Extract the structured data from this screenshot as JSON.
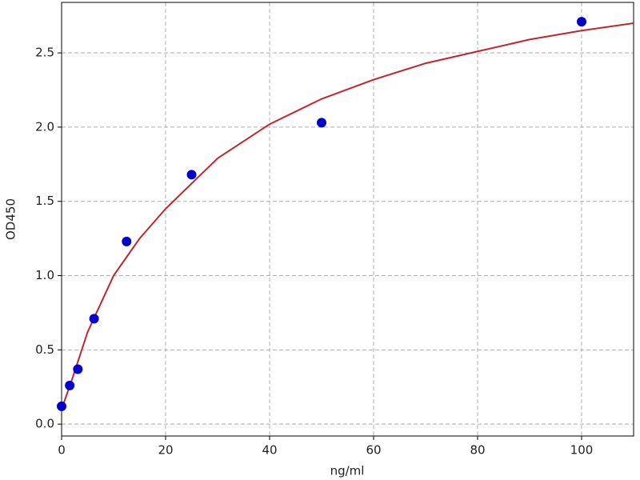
{
  "chart_data": {
    "type": "scatter",
    "x_label": "ng/ml",
    "y_label": "OD450",
    "xlim": [
      0,
      110
    ],
    "ylim": [
      -0.08,
      2.84
    ],
    "xticks": [
      0,
      20,
      40,
      60,
      80,
      100
    ],
    "yticks": [
      {
        "value": 0,
        "label": "0.0"
      },
      {
        "value": 0.5,
        "label": "0.5"
      },
      {
        "value": 1,
        "label": "1.0"
      },
      {
        "value": 1.5,
        "label": "1.5"
      },
      {
        "value": 2,
        "label": "2.0"
      },
      {
        "value": 2.5,
        "label": "2.5"
      }
    ],
    "grid": true,
    "series": [
      {
        "type": "scatter",
        "color": "#0000cc",
        "x": [
          0,
          1.5625,
          3.125,
          6.25,
          12.5,
          25,
          50,
          100
        ],
        "values": [
          0.12,
          0.26,
          0.37,
          0.71,
          1.23,
          1.68,
          2.03,
          2.71
        ]
      },
      {
        "type": "line",
        "color": "#c0272d",
        "x": [
          0,
          2,
          5,
          10,
          15,
          20,
          30,
          40,
          50,
          60,
          70,
          80,
          90,
          100,
          110
        ],
        "values": [
          0.1,
          0.3,
          0.62,
          1.0,
          1.25,
          1.45,
          1.79,
          2.02,
          2.19,
          2.32,
          2.43,
          2.51,
          2.59,
          2.65,
          2.7
        ]
      }
    ]
  }
}
